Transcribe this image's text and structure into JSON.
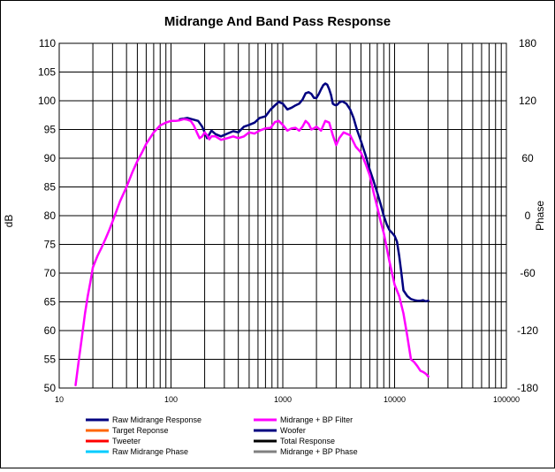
{
  "chart_data": {
    "type": "line",
    "title": "Midrange  And Band Pass Response",
    "xlabel": "",
    "ylabel": "dB",
    "y2label": "Phase",
    "xscale": "log",
    "xlim": [
      10,
      100000
    ],
    "ylim": [
      50,
      110
    ],
    "y2lim": [
      -180,
      180
    ],
    "x_ticks": [
      "10",
      "100",
      "1000",
      "10000",
      "100000"
    ],
    "y_ticks": [
      "110",
      "105",
      "100",
      "95",
      "90",
      "85",
      "80",
      "75",
      "70",
      "65",
      "60",
      "55",
      "50"
    ],
    "y2_ticks": [
      "180",
      "120",
      "60",
      "0",
      "-60",
      "-120",
      "-180"
    ],
    "grid": true,
    "legend_position": "bottom",
    "legend": [
      {
        "name": "Raw Midrange Response",
        "color": "#000080"
      },
      {
        "name": "Midrange + BP Filter",
        "color": "#ff00ff"
      },
      {
        "name": "Target Reponse",
        "color": "#ff6600"
      },
      {
        "name": "Woofer",
        "color": "#000080"
      },
      {
        "name": "Tweeter",
        "color": "#ff0000"
      },
      {
        "name": "Total Response",
        "color": "#000000"
      },
      {
        "name": "Raw Midrange Phase",
        "color": "#00ccff"
      },
      {
        "name": "Midrange + BP Phase",
        "color": "#808080"
      }
    ],
    "series": [
      {
        "name": "Raw Midrange Response",
        "color": "#000080",
        "x": [
          120,
          140,
          160,
          175,
          190,
          210,
          230,
          250,
          280,
          320,
          360,
          400,
          450,
          500,
          560,
          620,
          700,
          780,
          850,
          920,
          1000,
          1100,
          1200,
          1300,
          1400,
          1500,
          1600,
          1700,
          1800,
          1900,
          2000,
          2100,
          2200,
          2300,
          2400,
          2500,
          2600,
          2700,
          2800,
          2900,
          3000,
          3100,
          3200,
          3400,
          3700,
          4000,
          4300,
          4600,
          5000,
          5500,
          6000,
          6500,
          7000,
          7500,
          8000,
          8500,
          9000,
          9500,
          10000,
          10500,
          11000,
          11500,
          12000,
          13000,
          14000,
          15000,
          16000,
          17000,
          18000,
          19000,
          20000
        ],
        "y": [
          96.8,
          97,
          96.7,
          96.5,
          95.5,
          93.5,
          94.8,
          94.2,
          93.8,
          94.3,
          94.7,
          94.5,
          95.5,
          95.8,
          96.2,
          97,
          97.3,
          98.5,
          99.2,
          99.8,
          99.5,
          98.5,
          98.8,
          99.2,
          99.5,
          100.2,
          101.3,
          101.5,
          101.2,
          100.5,
          100.5,
          101.2,
          102,
          102.7,
          103,
          102.8,
          102,
          101,
          99.5,
          99.3,
          99.2,
          99.4,
          99.7,
          99.9,
          99.5,
          98.5,
          97,
          95,
          93,
          90.5,
          88,
          86,
          84,
          82,
          80,
          78.5,
          77.5,
          77,
          76.5,
          75.5,
          73,
          70,
          67,
          66,
          65.5,
          65.3,
          65.2,
          65.2,
          65.3,
          65.1,
          65.2
        ]
      },
      {
        "name": "Midrange + BP Filter",
        "color": "#ff00ff",
        "x": [
          14,
          15,
          16,
          17,
          18,
          19,
          20,
          22,
          24,
          26,
          28,
          30,
          35,
          40,
          45,
          50,
          55,
          60,
          70,
          80,
          90,
          100,
          110,
          120,
          130,
          140,
          150,
          160,
          170,
          180,
          190,
          200,
          210,
          220,
          230,
          250,
          280,
          320,
          360,
          400,
          450,
          500,
          560,
          620,
          700,
          780,
          850,
          920,
          1000,
          1100,
          1200,
          1300,
          1400,
          1500,
          1600,
          1700,
          1800,
          1900,
          2000,
          2200,
          2400,
          2600,
          2800,
          3000,
          3200,
          3500,
          4000,
          4500,
          5000,
          5500,
          6000,
          6500,
          7000,
          7500,
          8000,
          9000,
          10000,
          11000,
          12000,
          13000,
          14000,
          15000,
          16000,
          17000,
          18000,
          19000,
          20000
        ],
        "y": [
          50.5,
          55,
          59,
          63,
          66,
          68.5,
          71,
          73,
          74.5,
          76,
          77.5,
          79,
          82.5,
          85,
          87.5,
          89.5,
          91,
          92.5,
          94.5,
          95.7,
          96.2,
          96.5,
          96.5,
          96.6,
          96.8,
          96.7,
          96.5,
          95.7,
          94.5,
          93.5,
          93.8,
          94.5,
          94,
          93.3,
          93.8,
          93.8,
          93.2,
          93.5,
          93.8,
          93.5,
          93.8,
          94.5,
          94.3,
          94.8,
          95.2,
          95.3,
          96.3,
          96.5,
          95.8,
          94.8,
          95.2,
          95.3,
          94.8,
          95.5,
          96.5,
          96,
          95,
          95.2,
          95.5,
          94.8,
          96.5,
          96.2,
          94,
          92.3,
          93.5,
          94.5,
          94,
          92,
          91,
          89,
          87,
          84,
          81.5,
          79,
          77,
          72,
          68,
          66,
          63,
          59,
          55,
          54.5,
          53.8,
          53,
          52.8,
          52.5,
          52
        ]
      }
    ]
  }
}
